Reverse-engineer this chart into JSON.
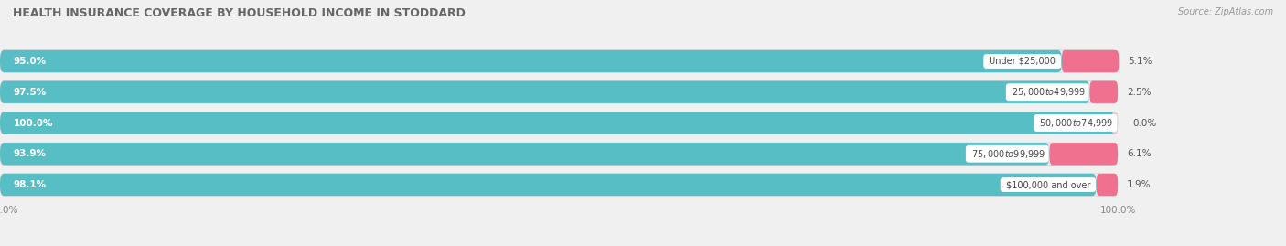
{
  "title": "HEALTH INSURANCE COVERAGE BY HOUSEHOLD INCOME IN STODDARD",
  "source": "Source: ZipAtlas.com",
  "categories": [
    "Under $25,000",
    "$25,000 to $49,999",
    "$50,000 to $74,999",
    "$75,000 to $99,999",
    "$100,000 and over"
  ],
  "with_coverage": [
    95.0,
    97.5,
    100.0,
    93.9,
    98.1
  ],
  "without_coverage": [
    5.1,
    2.5,
    0.0,
    6.1,
    1.9
  ],
  "color_coverage": "#56bec4",
  "color_no_coverage": "#f07090",
  "color_no_coverage_light": "#f5b8c8",
  "bar_bg_color": "#e8e8e8",
  "figsize": [
    14.06,
    2.69
  ],
  "dpi": 100,
  "title_fontsize": 9,
  "label_fontsize": 7.5,
  "tick_fontsize": 7.5,
  "legend_fontsize": 8,
  "source_fontsize": 7
}
